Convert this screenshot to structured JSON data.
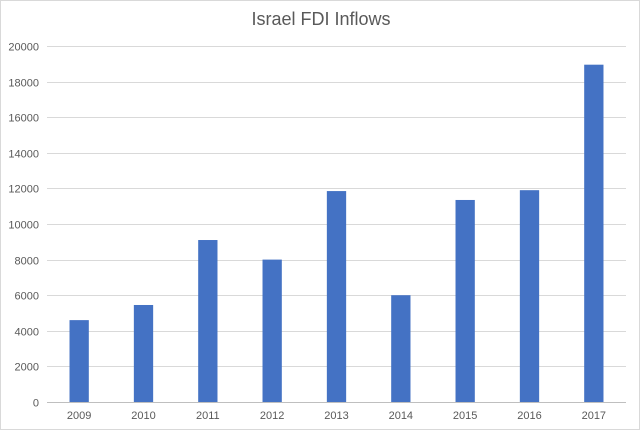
{
  "chart_data": {
    "type": "bar",
    "title": "Israel FDI Inflows",
    "xlabel": "",
    "ylabel": "",
    "categories": [
      "2009",
      "2010",
      "2011",
      "2012",
      "2013",
      "2014",
      "2015",
      "2016",
      "2017"
    ],
    "values": [
      4600,
      5450,
      9100,
      8000,
      11850,
      6000,
      11350,
      11900,
      18950
    ],
    "ylim": [
      0,
      20000
    ],
    "yticks": [
      0,
      2000,
      4000,
      6000,
      8000,
      10000,
      12000,
      14000,
      16000,
      18000,
      20000
    ],
    "grid": true,
    "legend": "none",
    "colors": {
      "bar": "#4472c4",
      "grid": "#d9d9d9",
      "axis": "#bfbfbf",
      "text": "#595959"
    }
  }
}
